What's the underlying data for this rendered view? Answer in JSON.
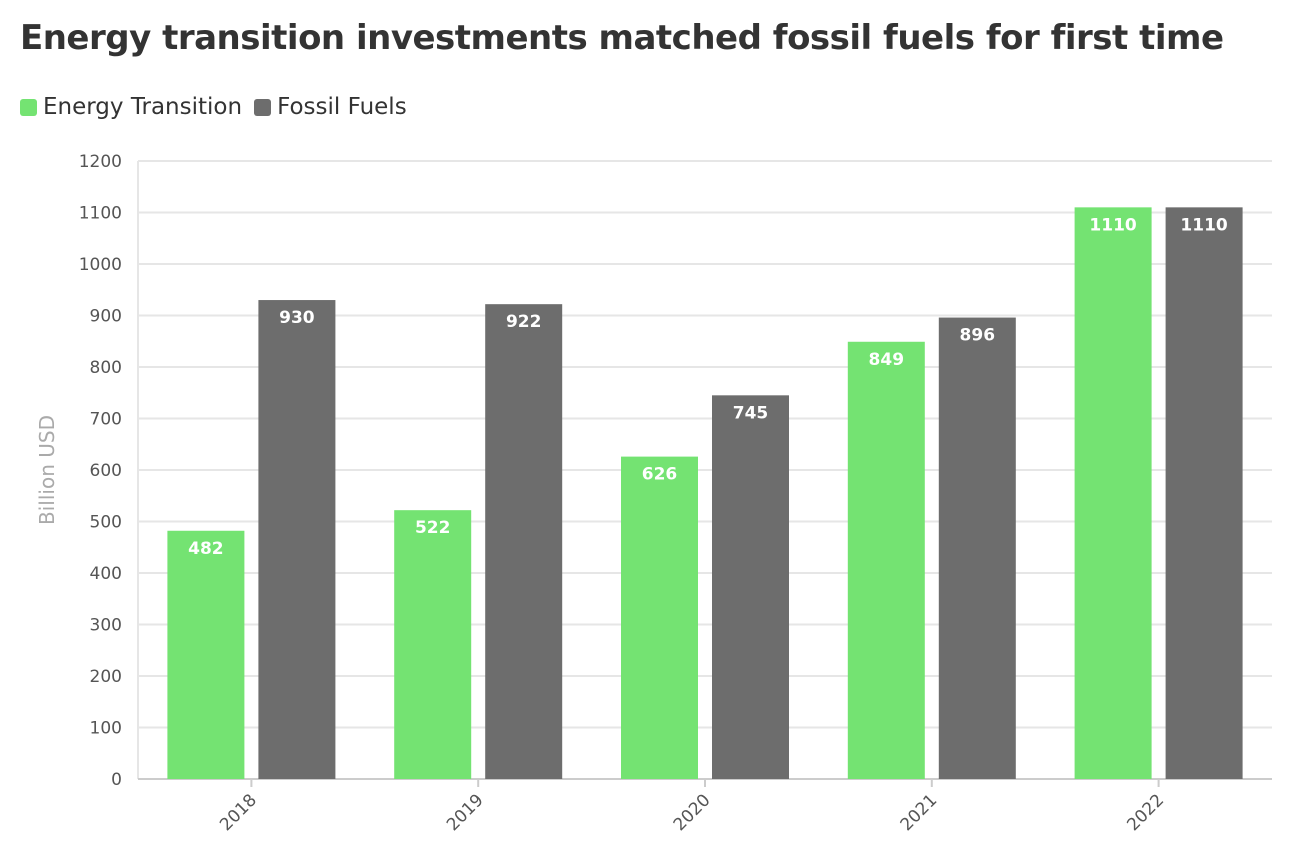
{
  "chart_data": {
    "type": "bar",
    "title": "Energy transition investments matched fossil fuels for first time",
    "xlabel": "",
    "ylabel": "Billion USD",
    "categories": [
      "2018",
      "2019",
      "2020",
      "2021",
      "2022"
    ],
    "series": [
      {
        "name": "Energy Transition",
        "values": [
          482,
          522,
          626,
          849,
          1110
        ],
        "color": "#74e372"
      },
      {
        "name": "Fossil Fuels",
        "values": [
          930,
          922,
          745,
          896,
          1110
        ],
        "color": "#6d6d6d"
      }
    ],
    "ylim": [
      0,
      1200
    ],
    "yticks": [
      0,
      100,
      200,
      300,
      400,
      500,
      600,
      700,
      800,
      900,
      1000,
      1100,
      1200
    ],
    "grid": true,
    "legend_position": "top-left"
  }
}
